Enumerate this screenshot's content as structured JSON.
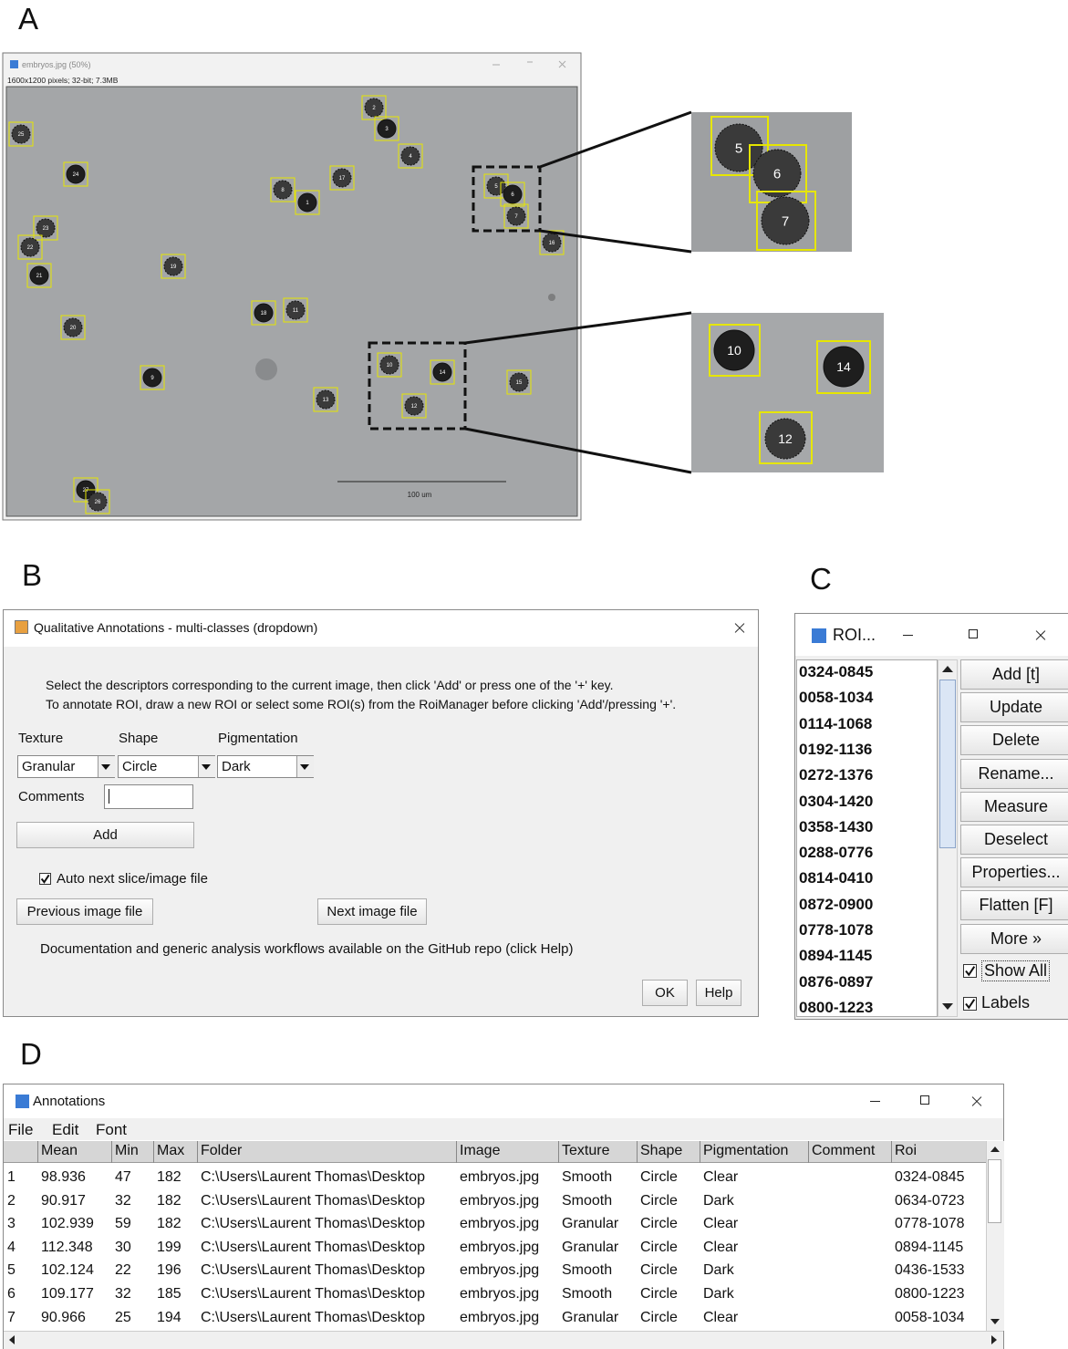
{
  "panel_labels": [
    "A",
    "B",
    "C",
    "D"
  ],
  "image_window": {
    "title": "embryos.jpg (50%)",
    "info": "1600x1200 pixels; 32-bit; 7.3MB",
    "scale_bar": "100 um",
    "rois": [
      "25",
      "24",
      "23",
      "22",
      "21",
      "20",
      "19",
      "18",
      "11",
      "8",
      "1",
      "17",
      "2",
      "3",
      "4",
      "5",
      "6",
      "7",
      "16",
      "9",
      "13",
      "10",
      "14",
      "12",
      "15",
      "27",
      "26"
    ],
    "zoom_1": [
      "5",
      "6",
      "7"
    ],
    "zoom_2": [
      "10",
      "14",
      "12"
    ]
  },
  "annotation_dialog": {
    "title": "Qualitative Annotations - multi-classes (dropdown)",
    "instructions": [
      "Select the descriptors corresponding to the current image, then click 'Add' or press one of the '+' key.",
      "To annotate ROI, draw a new ROI or select some ROI(s) from the RoiManager before clicking 'Add'/pressing '+'."
    ],
    "fields": [
      {
        "label": "Texture",
        "value": "Granular"
      },
      {
        "label": "Shape",
        "value": "Circle"
      },
      {
        "label": "Pigmentation",
        "value": "Dark"
      }
    ],
    "comments_label": "Comments",
    "add_button": "Add",
    "auto_next": "Auto next slice/image file",
    "previous_button": "Previous image file",
    "next_button": "Next image file",
    "documentation": "Documentation and generic analysis workflows available on the GitHub repo (click Help)",
    "ok_button": "OK",
    "help_button": "Help"
  },
  "roi_manager": {
    "title": "ROI...",
    "items": [
      "0324-0845",
      "0058-1034",
      "0114-1068",
      "0192-1136",
      "0272-1376",
      "0304-1420",
      "0358-1430",
      "0288-0776",
      "0814-0410",
      "0872-0900",
      "0778-1078",
      "0894-1145",
      "0876-0897",
      "0800-1223"
    ],
    "buttons": [
      "Add [t]",
      "Update",
      "Delete",
      "Rename...",
      "Measure",
      "Deselect",
      "Properties...",
      "Flatten [F]",
      "More »"
    ],
    "checkboxes": [
      "Show All",
      "Labels"
    ]
  },
  "results_table": {
    "title": "Annotations",
    "menu": [
      "File",
      "Edit",
      "Font"
    ],
    "columns": [
      "Mean",
      "Min",
      "Max",
      "Folder",
      "Image",
      "Texture",
      "Shape",
      "Pigmentation",
      "Comment",
      "Roi"
    ],
    "rows": [
      [
        1,
        98.936,
        47,
        182,
        "C:\\Users\\Laurent Thomas\\Desktop",
        "embryos.jpg",
        "Smooth",
        "Circle",
        "Clear",
        null,
        "0324-0845"
      ],
      [
        2,
        90.917,
        32,
        182,
        "C:\\Users\\Laurent Thomas\\Desktop",
        "embryos.jpg",
        "Smooth",
        "Circle",
        "Dark",
        null,
        "0634-0723"
      ],
      [
        3,
        102.939,
        59,
        182,
        "C:\\Users\\Laurent Thomas\\Desktop",
        "embryos.jpg",
        "Granular",
        "Circle",
        "Clear",
        null,
        "0778-1078"
      ],
      [
        4,
        112.348,
        30,
        199,
        "C:\\Users\\Laurent Thomas\\Desktop",
        "embryos.jpg",
        "Granular",
        "Circle",
        "Clear",
        null,
        "0894-1145"
      ],
      [
        5,
        102.124,
        22,
        196,
        "C:\\Users\\Laurent Thomas\\Desktop",
        "embryos.jpg",
        "Smooth",
        "Circle",
        "Dark",
        null,
        "0436-1533"
      ],
      [
        6,
        109.177,
        32,
        185,
        "C:\\Users\\Laurent Thomas\\Desktop",
        "embryos.jpg",
        "Smooth",
        "Circle",
        "Dark",
        null,
        "0800-1223"
      ],
      [
        7,
        90.966,
        25,
        194,
        "C:\\Users\\Laurent Thomas\\Desktop",
        "embryos.jpg",
        "Granular",
        "Circle",
        "Clear",
        null,
        "0058-1034"
      ]
    ]
  }
}
